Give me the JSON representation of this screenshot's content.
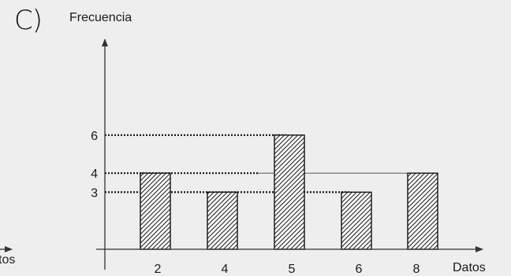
{
  "option_label": "C)",
  "previous_fragment": "tos",
  "chart_data": {
    "type": "bar",
    "categories": [
      "2",
      "4",
      "5",
      "6",
      "8"
    ],
    "values": [
      4,
      3,
      6,
      3,
      4
    ],
    "ylabel": "Frecuencia",
    "xlabel": "Datos",
    "yticks": [
      3,
      4,
      6
    ],
    "ylim": [
      0,
      11
    ],
    "grid": false,
    "reference_lines": [
      6,
      4,
      3
    ],
    "bar_fill": "diagonal hatch",
    "colors": {
      "bar_edge": "#111111",
      "hatch": "#222222",
      "axis": "#333333",
      "background": "#eeeeee"
    }
  }
}
